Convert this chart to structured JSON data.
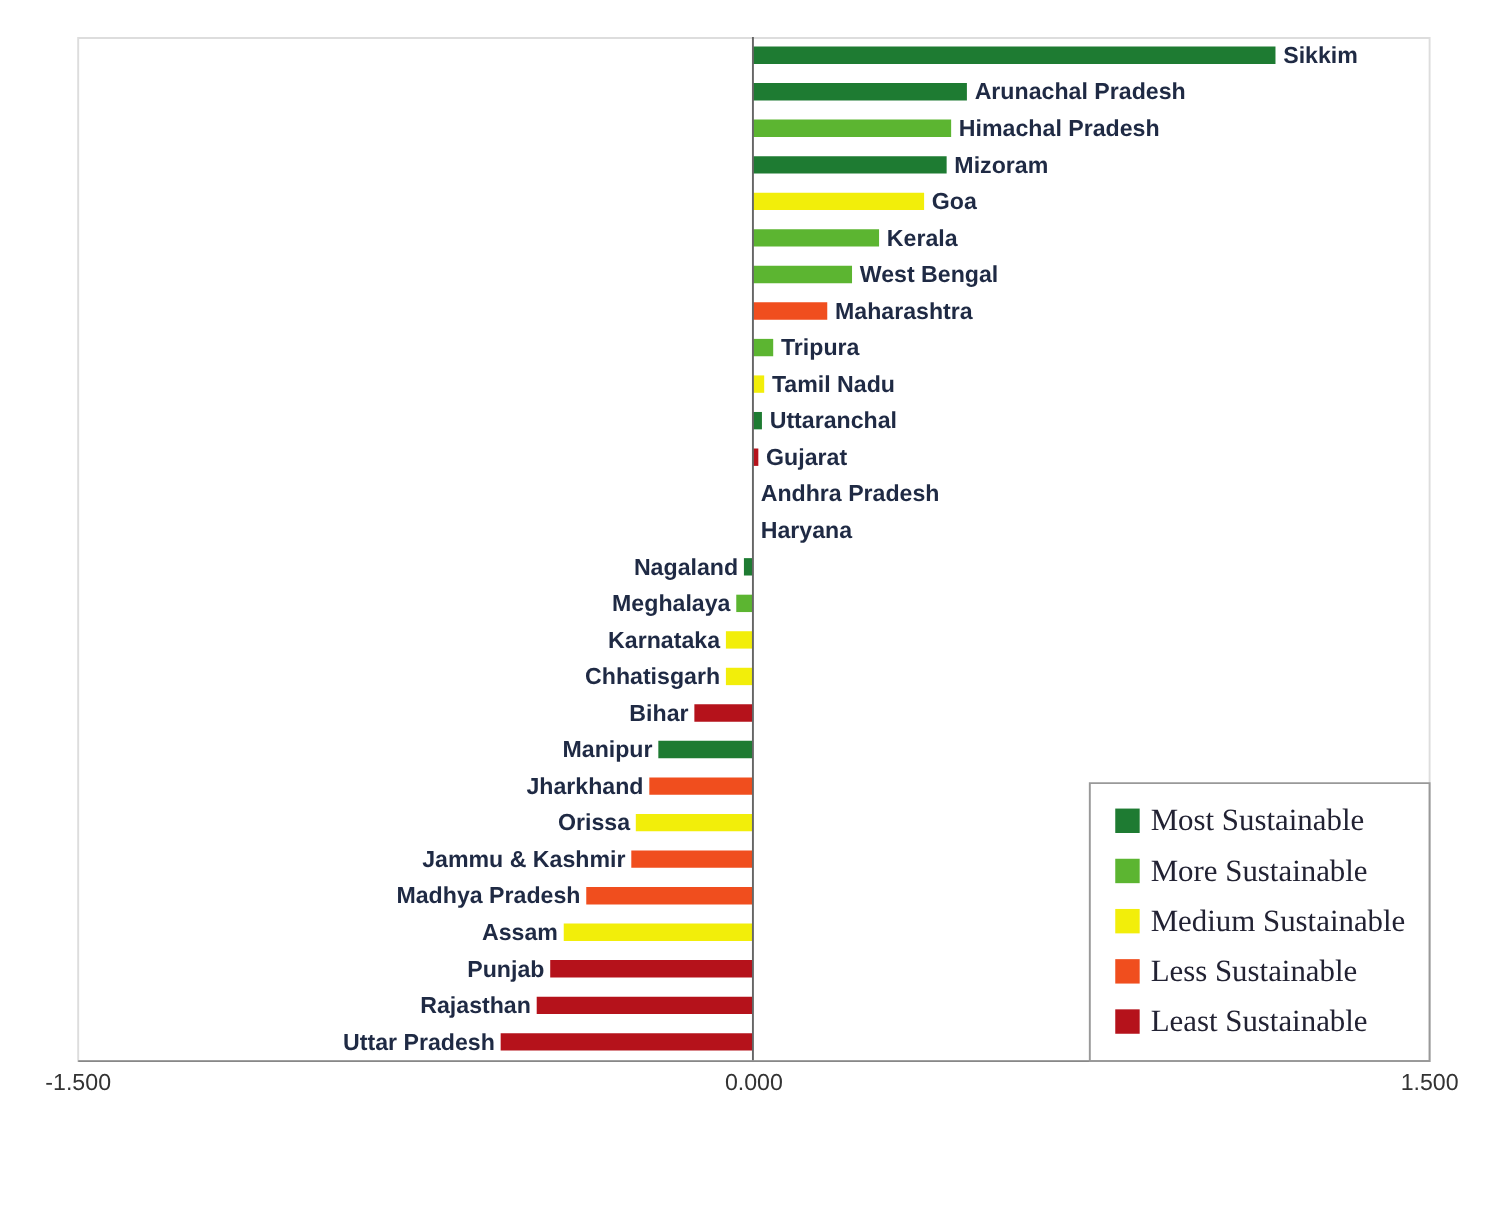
{
  "chart_data": {
    "type": "bar",
    "orientation": "horizontal",
    "categories": [
      "Sikkim",
      "Arunachal Pradesh",
      "Himachal Pradesh",
      "Mizoram",
      "Goa",
      "Kerala",
      "West Bengal",
      "Maharashtra",
      "Tripura",
      "Tamil Nadu",
      "Uttaranchal",
      "Gujarat",
      "Andhra Pradesh",
      "Haryana",
      "Nagaland",
      "Meghalaya",
      "Karnataka",
      "Chhatisgarh",
      "Bihar",
      "Manipur",
      "Jharkhand",
      "Orissa",
      "Jammu & Kashmir",
      "Madhya Pradesh",
      "Assam",
      "Punjab",
      "Rajasthan",
      "Uttar Pradesh"
    ],
    "series": [
      {
        "name": "Most Sustainable",
        "color": "#1e7b32",
        "values": [
          1.16,
          0.475,
          null,
          0.43,
          null,
          null,
          null,
          null,
          null,
          null,
          0.02,
          null,
          null,
          null,
          -0.02,
          null,
          null,
          null,
          null,
          -0.21,
          null,
          null,
          null,
          null,
          null,
          null,
          null,
          null
        ]
      },
      {
        "name": "More Sustainable",
        "color": "#5cb531",
        "values": [
          null,
          null,
          0.44,
          null,
          null,
          0.28,
          0.22,
          null,
          0.045,
          null,
          null,
          null,
          null,
          null,
          null,
          -0.037,
          null,
          null,
          null,
          null,
          null,
          null,
          null,
          null,
          null,
          null,
          null,
          null
        ]
      },
      {
        "name": "Medium Sustainable",
        "color": "#f2ee0a",
        "values": [
          null,
          null,
          null,
          null,
          0.38,
          null,
          null,
          null,
          null,
          0.025,
          null,
          null,
          0,
          0,
          null,
          null,
          -0.06,
          -0.06,
          null,
          null,
          null,
          -0.26,
          null,
          null,
          -0.42,
          null,
          null,
          null
        ]
      },
      {
        "name": "Less Sustainable",
        "color": "#f04e1e",
        "values": [
          null,
          null,
          null,
          null,
          null,
          null,
          null,
          0.165,
          null,
          null,
          null,
          null,
          null,
          null,
          null,
          null,
          null,
          null,
          null,
          null,
          -0.23,
          null,
          -0.27,
          -0.37,
          null,
          null,
          null,
          null
        ]
      },
      {
        "name": "Least Sustainable",
        "color": "#b5121b",
        "values": [
          null,
          null,
          null,
          null,
          null,
          null,
          null,
          null,
          null,
          null,
          null,
          0.012,
          null,
          null,
          null,
          null,
          null,
          null,
          -0.13,
          null,
          null,
          null,
          null,
          null,
          null,
          -0.45,
          -0.48,
          -0.56
        ]
      }
    ],
    "xlim": [
      -1.5,
      1.5
    ],
    "xticks": [
      {
        "value": -1.5,
        "label": "-1.500"
      },
      {
        "value": 0,
        "label": "0.000"
      },
      {
        "value": 1.5,
        "label": "1.500"
      }
    ],
    "grid": false,
    "legend": "bottom right"
  }
}
